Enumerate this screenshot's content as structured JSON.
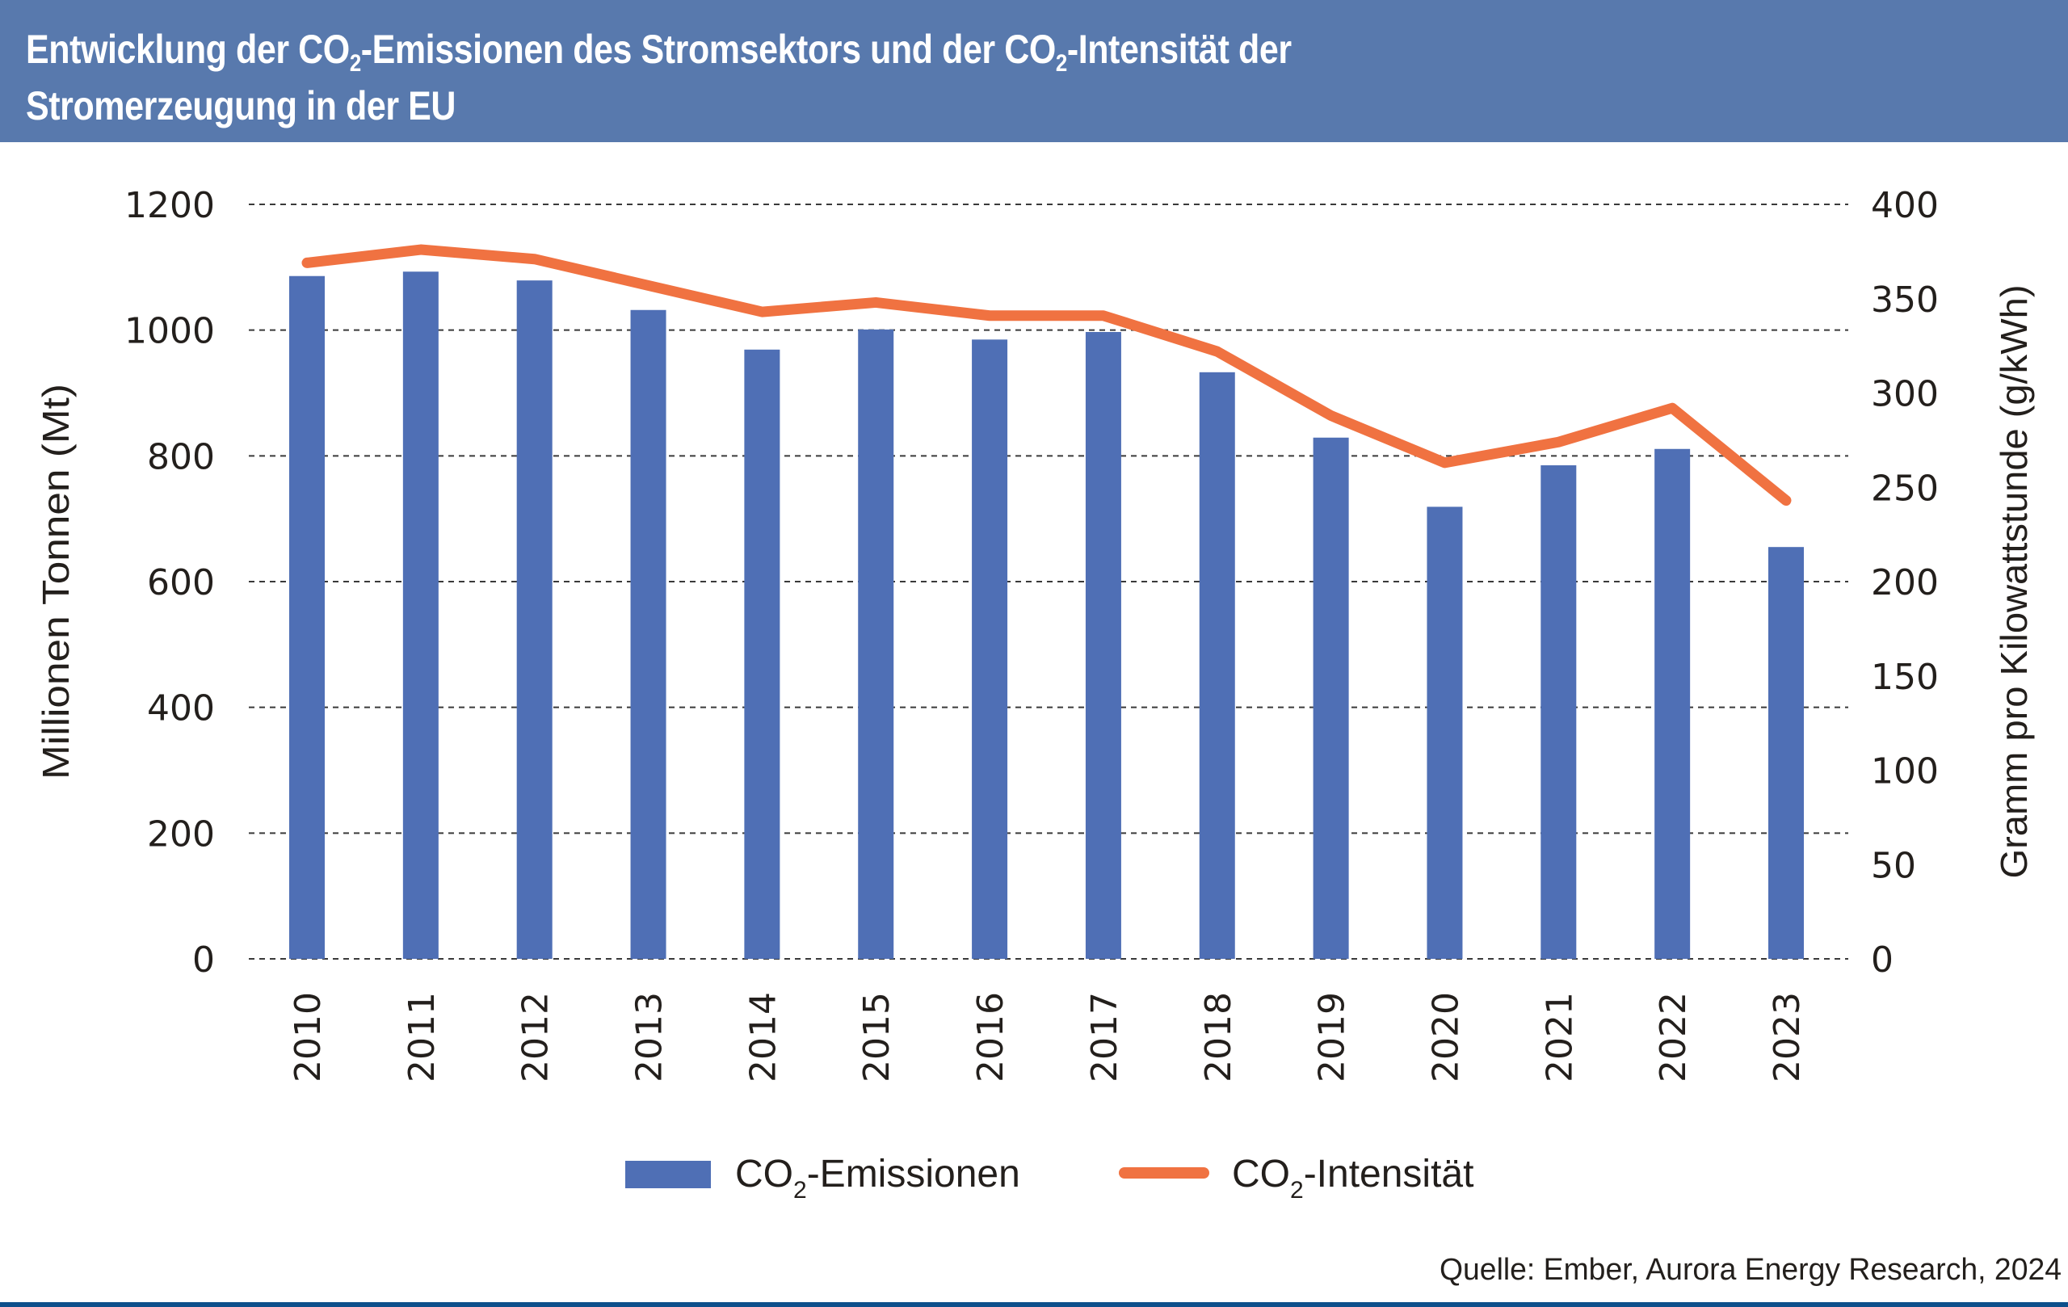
{
  "header": {
    "title_part1": "Entwicklung der CO",
    "title_sub1": "2",
    "title_part2": "-Emissionen des Stromsektors und der CO",
    "title_sub2": "2",
    "title_part3": "-Intensität der",
    "title_line2": "Stromerzeugung in der EU"
  },
  "colors": {
    "header_bg": "#5879ad",
    "bar": "#4f6fb5",
    "line": "#f07241",
    "bottom_bar": "#0d4f8b"
  },
  "source": "Quelle: Ember, Aurora Energy Research, 2024",
  "chart_data": {
    "type": "bar+line",
    "title": "Entwicklung der CO2-Emissionen des Stromsektors und der CO2-Intensität der Stromerzeugung in der EU",
    "categories": [
      "2010",
      "2011",
      "2012",
      "2013",
      "2014",
      "2015",
      "2016",
      "2017",
      "2018",
      "2019",
      "2020",
      "2021",
      "2022",
      "2023"
    ],
    "series": [
      {
        "name": "CO2-Emissionen",
        "legend_main": "CO",
        "legend_sub": "2",
        "legend_rest": "-Emissionen",
        "type": "bar",
        "axis": "left",
        "values": [
          1086,
          1093,
          1079,
          1032,
          969,
          1001,
          985,
          997,
          933,
          829,
          719,
          785,
          811,
          655
        ]
      },
      {
        "name": "CO2-Intensität",
        "legend_main": "CO",
        "legend_sub": "2",
        "legend_rest": "-Intensität",
        "type": "line",
        "axis": "right",
        "values": [
          369,
          376,
          371,
          357,
          343,
          348,
          341,
          341,
          322,
          288,
          263,
          274,
          292,
          243
        ]
      }
    ],
    "y_left": {
      "label": "Millionen Tonnen (Mt)",
      "lim": [
        0,
        1200
      ],
      "ticks": [
        "0",
        "200",
        "400",
        "600",
        "800",
        "1000",
        "1200"
      ]
    },
    "y_right": {
      "label": "Gramm pro Kilowattstunde (g/kWh)",
      "lim": [
        0,
        400
      ],
      "ticks": [
        "0",
        "50",
        "100",
        "150",
        "200",
        "250",
        "300",
        "350",
        "400"
      ]
    },
    "xlabel": "",
    "grid": "horizontal dashed",
    "legend_position": "bottom-center"
  }
}
